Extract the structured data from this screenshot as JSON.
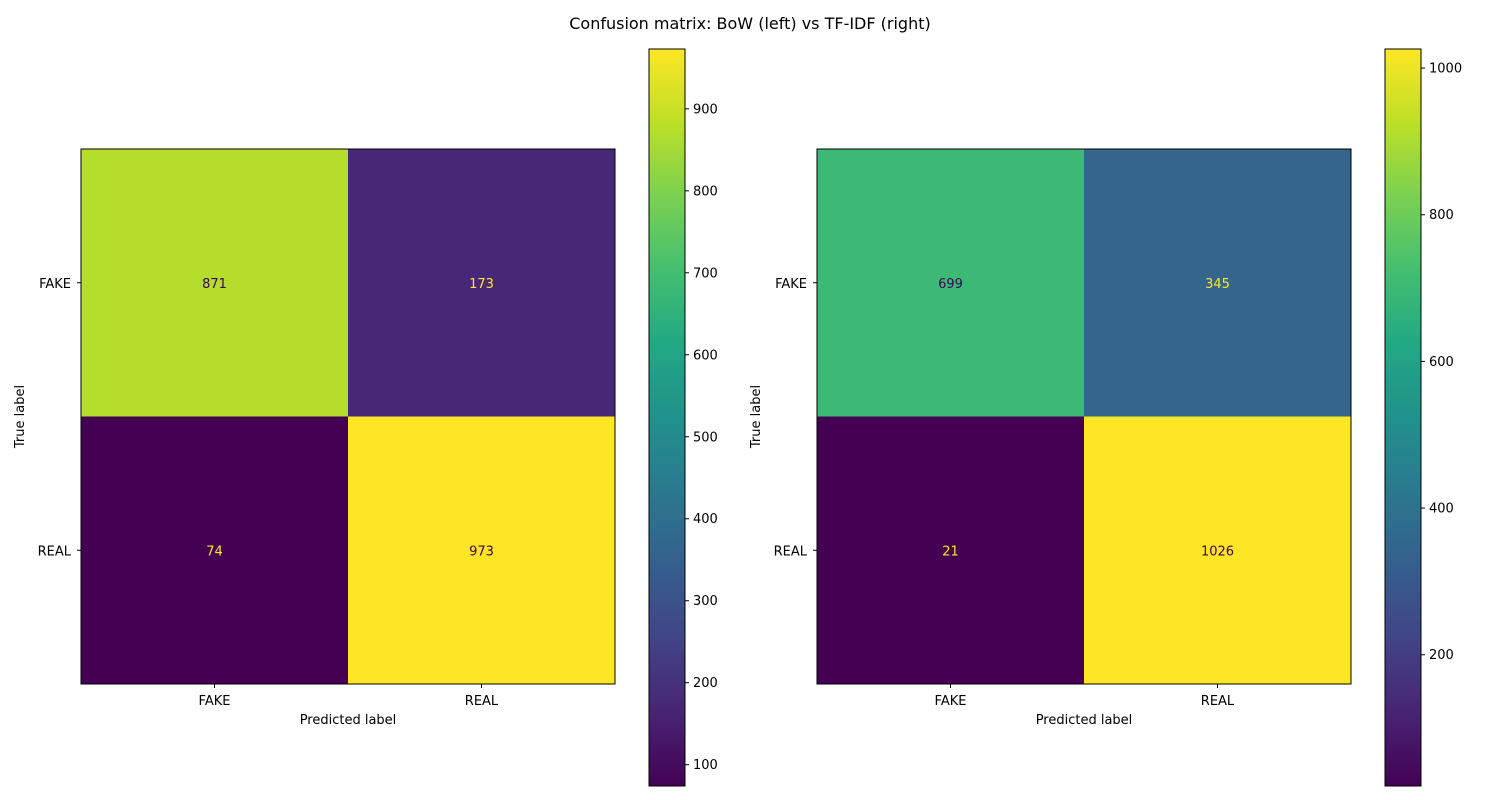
{
  "title": "Confusion matrix: BoW (left) vs TF-IDF (right)",
  "chart_data": [
    {
      "type": "heatmap",
      "xlabel": "Predicted label",
      "ylabel": "True label",
      "x_categories": [
        "FAKE",
        "REAL"
      ],
      "y_categories": [
        "FAKE",
        "REAL"
      ],
      "matrix": [
        [
          871,
          173
        ],
        [
          74,
          973
        ]
      ],
      "colormap": "viridis",
      "colorbar_range": [
        74,
        973
      ],
      "colorbar_ticks": [
        100,
        200,
        300,
        400,
        500,
        600,
        700,
        800,
        900
      ]
    },
    {
      "type": "heatmap",
      "xlabel": "Predicted label",
      "ylabel": "True label",
      "x_categories": [
        "FAKE",
        "REAL"
      ],
      "y_categories": [
        "FAKE",
        "REAL"
      ],
      "matrix": [
        [
          699,
          345
        ],
        [
          21,
          1026
        ]
      ],
      "colormap": "viridis",
      "colorbar_range": [
        21,
        1026
      ],
      "colorbar_ticks": [
        200,
        400,
        600,
        800,
        1000
      ]
    }
  ]
}
